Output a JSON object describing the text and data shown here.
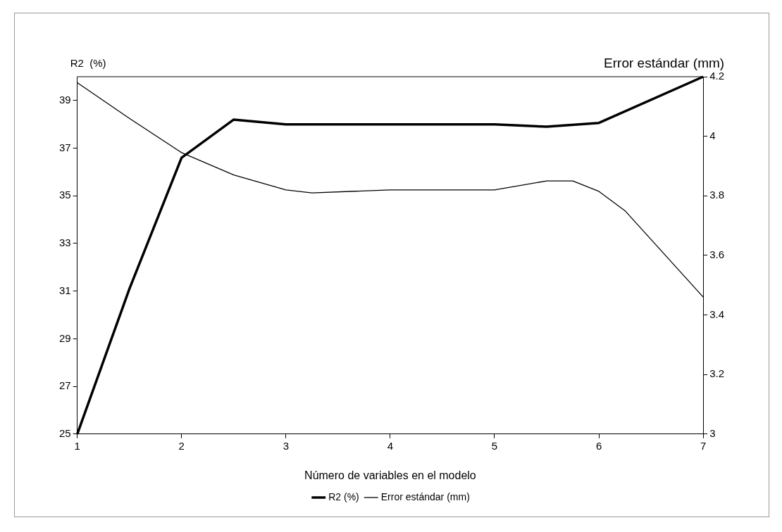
{
  "chart_data": {
    "type": "line",
    "xlabel": "Número de variables en el modelo",
    "ylabel": "R2  (%)",
    "y2label": "Error estándar (mm)",
    "xlim": [
      1,
      7
    ],
    "xticks": [
      1,
      2,
      3,
      4,
      5,
      6,
      7
    ],
    "ylim": [
      25,
      40
    ],
    "yticks": [
      25,
      27,
      29,
      31,
      33,
      35,
      37,
      39
    ],
    "y2lim": [
      3,
      4.2
    ],
    "y2ticks": [
      3,
      3.2,
      3.4,
      3.6,
      3.8,
      4,
      4.2
    ],
    "series": [
      {
        "name": "R2 (%)",
        "color": "#000000",
        "x": [
          1,
          1.5,
          2,
          2.5,
          3,
          3.5,
          4,
          5,
          5.5,
          6,
          7
        ],
        "values": [
          25,
          31.1,
          36.6,
          38.2,
          38,
          38,
          38,
          38,
          37.9,
          38.06,
          40
        ]
      },
      {
        "name": "Error estándar (mm)",
        "color": "#000000",
        "axis": "y2",
        "x": [
          1,
          1.5,
          2,
          2.5,
          3,
          3.25,
          4,
          5,
          5.5,
          5.75,
          6,
          6.25,
          7
        ],
        "values": [
          4.18,
          4.06,
          3.945,
          3.87,
          3.82,
          3.81,
          3.82,
          3.82,
          3.85,
          3.85,
          3.815,
          3.75,
          3.46
        ]
      }
    ],
    "grid": false,
    "legend": "bottom",
    "marker": "none",
    "line_style": "solid"
  }
}
